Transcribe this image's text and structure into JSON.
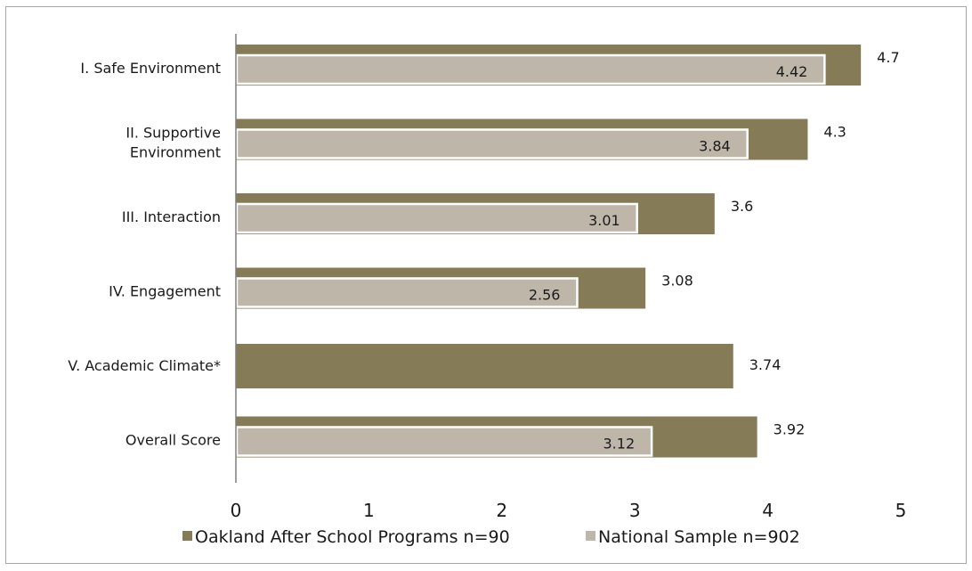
{
  "chart_data": {
    "type": "bar",
    "orientation": "horizontal",
    "categories": [
      [
        "I. Safe Environment"
      ],
      [
        "II. Supportive",
        "Environment"
      ],
      [
        "III. Interaction"
      ],
      [
        "IV. Engagement"
      ],
      [
        "V. Academic Climate*"
      ],
      [
        "Overall Score"
      ]
    ],
    "series": [
      {
        "name": "Oakland After School Programs n=90",
        "color": "#857b57",
        "values": [
          4.7,
          4.3,
          3.6,
          3.08,
          3.74,
          3.92
        ],
        "labels": [
          "4.7",
          "4.3",
          "3.6",
          "3.08",
          "3.74",
          "3.92"
        ]
      },
      {
        "name": "National Sample n=902",
        "color": "#bfb6aa",
        "values": [
          4.42,
          3.84,
          3.01,
          2.56,
          null,
          3.12
        ],
        "labels": [
          "4.42",
          "3.84",
          "3.01",
          "2.56",
          "",
          "3.12"
        ]
      }
    ],
    "xlim": [
      0,
      5
    ],
    "xticks": [
      "0",
      "1",
      "2",
      "3",
      "4",
      "5"
    ],
    "grid": false,
    "legend_position": "bottom"
  }
}
